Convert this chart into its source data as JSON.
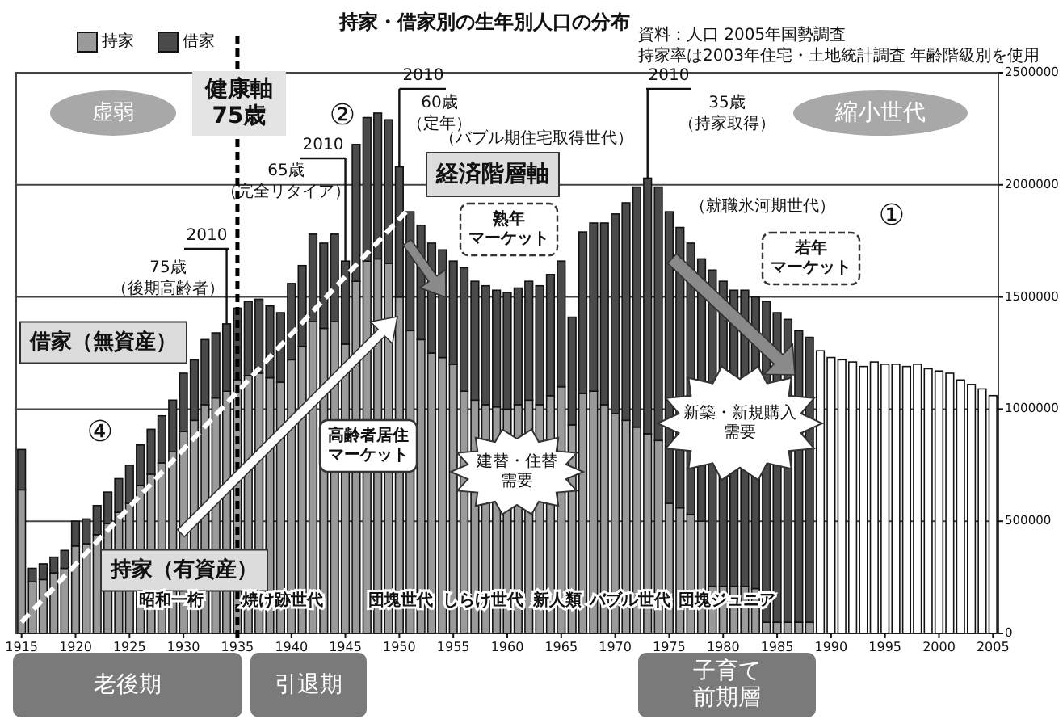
{
  "chart_data": {
    "type": "bar",
    "title": "持家・借家別の生年別人口の分布",
    "annotations": [
      "資料：人口 2005年国勢調査",
      "持家率は2003年住宅・土地統計調査 年齢階級別を使用",
      "虚弱",
      "縮小世代",
      "②",
      "①",
      "④",
      {
        "text": "2010",
        "x": 1934,
        "y": 1380000
      },
      "75歳",
      "（後期高齢者）",
      {
        "text": "2010",
        "x": 1945,
        "y": 1660000
      },
      "65歳",
      "（完全リタイア）",
      {
        "text": "2010",
        "x": 1950,
        "y": 2080000
      },
      "60歳",
      "（定年）",
      "（バブル期住宅取得世代）",
      "経済階層軸",
      "熟年マーケット",
      {
        "text": "2010",
        "x": 1973,
        "y": 2030000
      },
      "35歳",
      "（持家取得）",
      "（就職氷河期世代）",
      "若年マーケット",
      "高齢者居住マーケット",
      "建替・住替需要",
      "新築・新規購入需要",
      "借家（無資産）",
      "持家（有資産）",
      "昭和一桁",
      "焼け跡世代",
      "団塊世代",
      "しらけ世代",
      "新人類",
      "バブル世代",
      "団塊ジュニア",
      "老後期",
      "引退期",
      "子育て前期層"
    ],
    "x": [
      1915,
      1916,
      1917,
      1918,
      1919,
      1920,
      1921,
      1922,
      1923,
      1924,
      1925,
      1926,
      1927,
      1928,
      1929,
      1930,
      1931,
      1932,
      1933,
      1934,
      1935,
      1936,
      1937,
      1938,
      1939,
      1940,
      1941,
      1942,
      1943,
      1944,
      1945,
      1946,
      1947,
      1948,
      1949,
      1950,
      1951,
      1952,
      1953,
      1954,
      1955,
      1956,
      1957,
      1958,
      1959,
      1960,
      1961,
      1962,
      1963,
      1964,
      1965,
      1966,
      1967,
      1968,
      1969,
      1970,
      1971,
      1972,
      1973,
      1974,
      1975,
      1976,
      1977,
      1978,
      1979,
      1980,
      1981,
      1982,
      1983,
      1984,
      1985,
      1986,
      1987,
      1988,
      1989,
      1990,
      1991,
      1992,
      1993,
      1994,
      1995,
      1996,
      1997,
      1998,
      1999,
      2000,
      2001,
      2002,
      2003,
      2004,
      2005
    ],
    "xlim": [
      1914.5,
      2005.5
    ],
    "xticks": [
      1915,
      1920,
      1925,
      1930,
      1935,
      1940,
      1945,
      1950,
      1955,
      1960,
      1965,
      1970,
      1975,
      1980,
      1985,
      1990,
      1995,
      2000,
      2005
    ],
    "ylim": [
      0,
      2500000
    ],
    "yticks": [
      0,
      500000,
      1000000,
      1500000,
      2000000,
      2500000
    ],
    "grid": "y",
    "legend": "top left",
    "stacked": true,
    "ref_lines": [
      {
        "axis": "x",
        "value": 1935,
        "label": "健康軸75歳",
        "line_style": "dashed"
      }
    ],
    "series": [
      {
        "name": "持家",
        "color": "#9a9a9a",
        "values": [
          640000,
          230000,
          240000,
          270000,
          290000,
          390000,
          400000,
          440000,
          490000,
          540000,
          580000,
          660000,
          710000,
          760000,
          810000,
          900000,
          950000,
          1020000,
          1050000,
          1080000,
          1130000,
          1150000,
          1160000,
          1140000,
          1120000,
          1220000,
          1280000,
          1390000,
          1360000,
          1390000,
          1290000,
          1570000,
          1660000,
          1670000,
          1650000,
          1500000,
          1350000,
          1310000,
          1250000,
          1230000,
          1200000,
          1080000,
          1040000,
          1020000,
          1010000,
          1000000,
          1020000,
          1040000,
          1020000,
          1060000,
          1100000,
          930000,
          1070000,
          1080000,
          1020000,
          980000,
          950000,
          920000,
          890000,
          860000,
          580000,
          560000,
          530000,
          500000,
          210000,
          210000,
          210000,
          210000,
          200000,
          50000,
          50000,
          50000,
          50000,
          50000,
          null,
          null,
          null,
          null,
          null,
          null,
          null,
          null,
          null,
          null,
          null,
          null,
          null,
          null,
          null,
          null,
          null
        ]
      },
      {
        "name": "借家",
        "color": "#4a4a4a",
        "values": [
          180000,
          60000,
          70000,
          70000,
          80000,
          110000,
          110000,
          130000,
          140000,
          150000,
          170000,
          180000,
          200000,
          210000,
          230000,
          260000,
          270000,
          290000,
          290000,
          300000,
          320000,
          330000,
          330000,
          320000,
          310000,
          340000,
          360000,
          390000,
          380000,
          390000,
          370000,
          610000,
          640000,
          650000,
          640000,
          580000,
          530000,
          510000,
          490000,
          480000,
          460000,
          550000,
          530000,
          530000,
          520000,
          520000,
          520000,
          530000,
          530000,
          540000,
          560000,
          480000,
          720000,
          750000,
          810000,
          890000,
          970000,
          1070000,
          1140000,
          1130000,
          1300000,
          1250000,
          1210000,
          1170000,
          1410000,
          1360000,
          1320000,
          1320000,
          1300000,
          1430000,
          1380000,
          1350000,
          1300000,
          1270000,
          null,
          null,
          null,
          null,
          null,
          null,
          null,
          null,
          null,
          null,
          null,
          null,
          null,
          null,
          null,
          null,
          null
        ]
      },
      {
        "type": "line",
        "color": "#ffffff",
        "line_style": "dashed",
        "x": [
          1915,
          1952
        ],
        "values": [
          50000,
          1950000
        ]
      },
      {
        "color": "#ffffff",
        "values": [
          null,
          null,
          null,
          null,
          null,
          null,
          null,
          null,
          null,
          null,
          null,
          null,
          null,
          null,
          null,
          null,
          null,
          null,
          null,
          null,
          null,
          null,
          null,
          null,
          null,
          null,
          null,
          null,
          null,
          null,
          null,
          null,
          null,
          null,
          null,
          null,
          null,
          null,
          null,
          null,
          null,
          null,
          null,
          null,
          null,
          null,
          null,
          null,
          null,
          null,
          null,
          null,
          null,
          null,
          null,
          null,
          null,
          null,
          null,
          null,
          null,
          null,
          null,
          null,
          null,
          null,
          null,
          null,
          null,
          null,
          null,
          null,
          null,
          null,
          1260000,
          1230000,
          1220000,
          1210000,
          1190000,
          1210000,
          1200000,
          1200000,
          1190000,
          1200000,
          1180000,
          1170000,
          1160000,
          1130000,
          1110000,
          1090000,
          1060000
        ]
      }
    ]
  }
}
